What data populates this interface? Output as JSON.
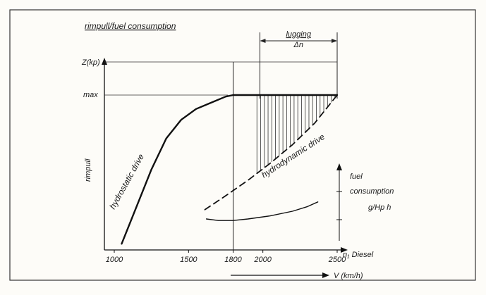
{
  "chart_data": {
    "type": "line",
    "title": "rimpull/fuel consumption",
    "ylabel": "rimpull",
    "y_axis_label": "Z(kp)",
    "y_tick_max_label": "max",
    "xlabel": "n₁ Diesel",
    "xlim": [
      1000,
      2500
    ],
    "x_ticks": [
      1000,
      1500,
      1800,
      2000,
      2500
    ],
    "x_tick_labels": [
      "1000",
      "1500",
      "1800",
      "2000",
      "2500"
    ],
    "secondary_x_label": "V (km/h)",
    "ylim": [
      0,
      1.2
    ],
    "series": [
      {
        "name": "hydrostatic drive",
        "x": [
          1050,
          1150,
          1250,
          1350,
          1450,
          1550,
          1650,
          1750,
          1800,
          2000,
          2200,
          2400,
          2500
        ],
        "y": [
          0.04,
          0.28,
          0.52,
          0.72,
          0.84,
          0.91,
          0.95,
          0.99,
          1.0,
          1.0,
          1.0,
          1.0,
          1.0
        ],
        "style": "solid"
      },
      {
        "name": "hydrodynamic drive",
        "x": [
          1610,
          1750,
          1900,
          2050,
          2200,
          2350,
          2500
        ],
        "y": [
          0.26,
          0.35,
          0.45,
          0.56,
          0.68,
          0.82,
          1.0
        ],
        "style": "dashed"
      },
      {
        "name": "fuel consumption",
        "x": [
          1620,
          1700,
          1800,
          1900,
          2050,
          2200,
          2300,
          2370
        ],
        "y": [
          0.2,
          0.19,
          0.19,
          0.2,
          0.22,
          0.25,
          0.28,
          0.31
        ],
        "style": "solid-thin"
      }
    ],
    "annotations": {
      "lugging_label": "lugging",
      "lugging_sub": "Δn",
      "lugging_range": [
        1980,
        2500
      ],
      "hatched_region": "between hydrostatic and hydrodynamic curves, 1950–2500",
      "fuel_label_line1": "fuel",
      "fuel_label_line2": "consumption",
      "fuel_unit": "g/Hp h",
      "vertical_reference_x": 1800
    },
    "grid": false,
    "legend": "none"
  }
}
